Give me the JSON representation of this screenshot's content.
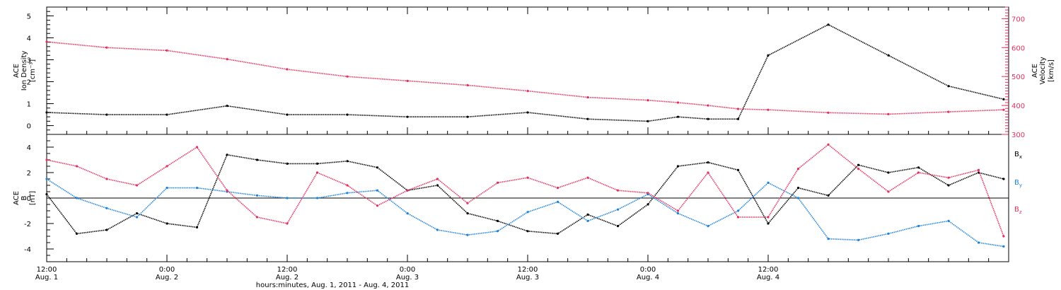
{
  "chart_data": [
    {
      "type": "scatter",
      "panel": "top",
      "left_axis_label": [
        "ACE",
        "Ion Density",
        "[cm⁻³]"
      ],
      "right_axis_label": [
        "ACE",
        "Velocity",
        "[km/s]"
      ],
      "left_ylim": [
        -0.4,
        5.4
      ],
      "left_ticks": [
        "0",
        "1",
        "2",
        "3",
        "4",
        "5"
      ],
      "left_tick_values": [
        0,
        1,
        2,
        3,
        4,
        5
      ],
      "right_ylim": [
        300,
        740
      ],
      "right_ticks": [
        "300",
        "400",
        "500",
        "600",
        "700"
      ],
      "right_tick_values": [
        300,
        400,
        500,
        600,
        700
      ],
      "x_hours": [
        0,
        6,
        12,
        18,
        24,
        30,
        36,
        42,
        48,
        54,
        60,
        63,
        66,
        69,
        72,
        78,
        84,
        90,
        95.5
      ],
      "series": [
        {
          "color": "#000000",
          "axis": "left",
          "values": [
            0.6,
            0.5,
            0.5,
            0.9,
            0.5,
            0.5,
            0.4,
            0.4,
            0.6,
            0.3,
            0.2,
            0.4,
            0.3,
            0.3,
            3.2,
            4.6,
            3.2,
            1.8,
            1.2
          ]
        },
        {
          "color": "#e5305f",
          "axis": "right",
          "values": [
            620,
            600,
            590,
            560,
            525,
            500,
            485,
            470,
            450,
            428,
            418,
            410,
            400,
            388,
            385,
            375,
            370,
            378,
            385
          ]
        }
      ]
    },
    {
      "type": "scatter",
      "panel": "bottom",
      "left_axis_label": [
        "ACE",
        "B",
        "[nT]"
      ],
      "ylim": [
        -5,
        5
      ],
      "ticks": [
        "-4",
        "-2",
        "0",
        "2",
        "4"
      ],
      "tick_values": [
        -4,
        -2,
        0,
        2,
        4
      ],
      "x_hours": [
        0,
        3,
        6,
        9,
        12,
        15,
        18,
        21,
        24,
        27,
        30,
        33,
        36,
        39,
        42,
        45,
        48,
        51,
        54,
        57,
        60,
        63,
        66,
        69,
        72,
        75,
        78,
        81,
        84,
        87,
        90,
        93,
        95.5
      ],
      "series": [
        {
          "name": "Bx",
          "color": "#000000",
          "values": [
            0.3,
            -2.8,
            -2.5,
            -1.2,
            -2.0,
            -2.3,
            3.4,
            3.0,
            2.7,
            2.7,
            2.9,
            2.4,
            0.6,
            1.0,
            -1.2,
            -1.8,
            -2.6,
            -2.8,
            -1.3,
            -2.2,
            -0.5,
            2.5,
            2.8,
            2.2,
            -2.0,
            0.8,
            0.2,
            2.6,
            2.0,
            2.4,
            1.0,
            2.0,
            1.5
          ]
        },
        {
          "name": "By",
          "color": "#1e82dc",
          "values": [
            1.5,
            0.0,
            -0.8,
            -1.5,
            0.8,
            0.8,
            0.5,
            0.2,
            0.0,
            0.0,
            0.4,
            0.6,
            -1.2,
            -2.5,
            -2.9,
            -2.6,
            -1.1,
            -0.3,
            -1.8,
            -0.9,
            0.3,
            -1.2,
            -2.2,
            -1.0,
            1.2,
            0.0,
            -3.2,
            -3.3,
            -2.8,
            -2.2,
            -1.8,
            -3.5,
            -3.8
          ]
        },
        {
          "name": "Bz",
          "color": "#e5305f",
          "values": [
            3.0,
            2.5,
            1.5,
            1.0,
            2.5,
            4.0,
            0.6,
            -1.5,
            -2.0,
            2.0,
            1.0,
            -0.6,
            0.6,
            1.5,
            -0.4,
            1.2,
            1.6,
            0.8,
            1.6,
            0.6,
            0.4,
            -1.0,
            2.0,
            -1.5,
            -1.5,
            2.3,
            4.2,
            2.3,
            0.5,
            2.0,
            1.6,
            2.2,
            -3.0
          ]
        }
      ]
    }
  ],
  "x_axis": {
    "xlim_hours": [
      0,
      96
    ],
    "ticks": [
      {
        "time": "12:00",
        "date": "Aug. 1"
      },
      {
        "time": "0:00",
        "date": "Aug. 2"
      },
      {
        "time": "12:00",
        "date": "Aug. 2"
      },
      {
        "time": "0:00",
        "date": "Aug. 3"
      },
      {
        "time": "12:00",
        "date": "Aug. 3"
      },
      {
        "time": "0:00",
        "date": "Aug. 4"
      },
      {
        "time": "12:00",
        "date": "Aug. 4"
      }
    ],
    "tick_hours": [
      0,
      12,
      24,
      36,
      48,
      60,
      72
    ],
    "title": "hours:minutes, Aug.  1, 2011 - Aug.  4, 2011"
  },
  "legend": {
    "bx_main": "B",
    "bx_sub": "x",
    "bx_color": "#000000",
    "by_main": "B",
    "by_sub": "y",
    "by_color": "#1e82dc",
    "bz_main": "B",
    "bz_sub": "z",
    "bz_color": "#e5305f"
  }
}
